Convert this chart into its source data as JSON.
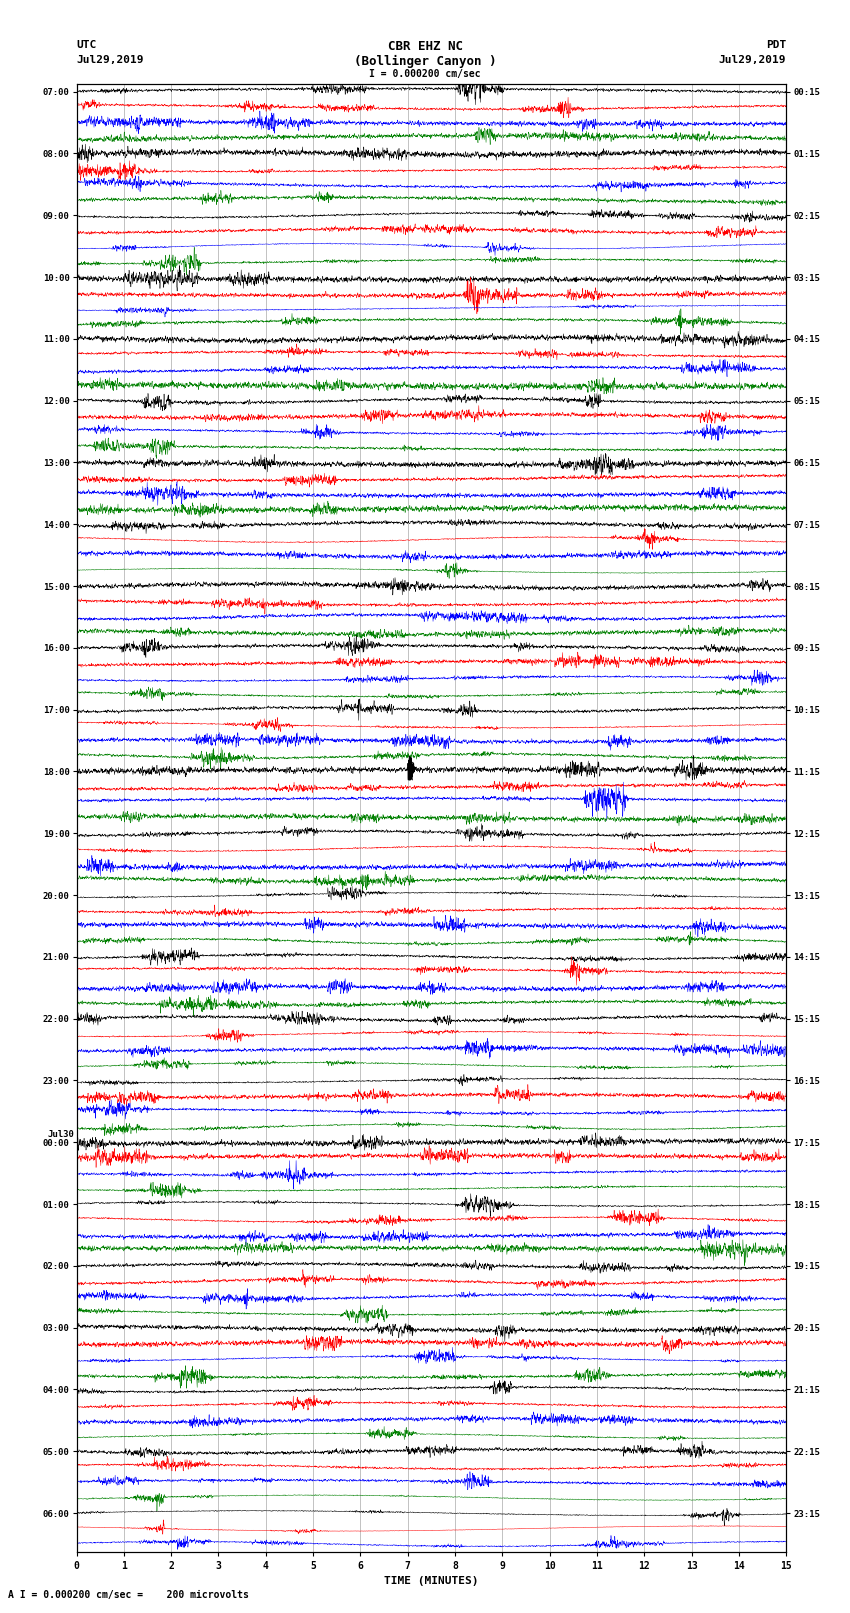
{
  "title_line1": "CBR EHZ NC",
  "title_line2": "(Bollinger Canyon )",
  "scale_text": "I = 0.000200 cm/sec",
  "bottom_text": "A I = 0.000200 cm/sec =    200 microvolts",
  "utc_label": "UTC",
  "utc_date": "Jul29,2019",
  "pdt_label": "PDT",
  "pdt_date": "Jul29,2019",
  "jul30_label": "Jul30",
  "xlabel": "TIME (MINUTES)",
  "xmin": 0,
  "xmax": 15,
  "xticks": [
    0,
    1,
    2,
    3,
    4,
    5,
    6,
    7,
    8,
    9,
    10,
    11,
    12,
    13,
    14,
    15
  ],
  "background_color": "#ffffff",
  "trace_colors": [
    "black",
    "red",
    "blue",
    "green"
  ],
  "fig_width": 8.5,
  "fig_height": 16.13,
  "left_times_utc": [
    "07:00",
    "",
    "",
    "",
    "08:00",
    "",
    "",
    "",
    "09:00",
    "",
    "",
    "",
    "10:00",
    "",
    "",
    "",
    "11:00",
    "",
    "",
    "",
    "12:00",
    "",
    "",
    "",
    "13:00",
    "",
    "",
    "",
    "14:00",
    "",
    "",
    "",
    "15:00",
    "",
    "",
    "",
    "16:00",
    "",
    "",
    "",
    "17:00",
    "",
    "",
    "",
    "18:00",
    "",
    "",
    "",
    "19:00",
    "",
    "",
    "",
    "20:00",
    "",
    "",
    "",
    "21:00",
    "",
    "",
    "",
    "22:00",
    "",
    "",
    "",
    "23:00",
    "",
    "",
    "",
    "00:00",
    "",
    "",
    "",
    "01:00",
    "",
    "",
    "",
    "02:00",
    "",
    "",
    "",
    "03:00",
    "",
    "",
    "",
    "04:00",
    "",
    "",
    "",
    "05:00",
    "",
    "",
    "",
    "06:00",
    "",
    ""
  ],
  "right_times_pdt": [
    "00:15",
    "",
    "",
    "",
    "01:15",
    "",
    "",
    "",
    "02:15",
    "",
    "",
    "",
    "03:15",
    "",
    "",
    "",
    "04:15",
    "",
    "",
    "",
    "05:15",
    "",
    "",
    "",
    "06:15",
    "",
    "",
    "",
    "07:15",
    "",
    "",
    "",
    "08:15",
    "",
    "",
    "",
    "09:15",
    "",
    "",
    "",
    "10:15",
    "",
    "",
    "",
    "11:15",
    "",
    "",
    "",
    "12:15",
    "",
    "",
    "",
    "13:15",
    "",
    "",
    "",
    "14:15",
    "",
    "",
    "",
    "15:15",
    "",
    "",
    "",
    "16:15",
    "",
    "",
    "",
    "17:15",
    "",
    "",
    "",
    "18:15",
    "",
    "",
    "",
    "19:15",
    "",
    "",
    "",
    "20:15",
    "",
    "",
    "",
    "21:15",
    "",
    "",
    "",
    "22:15",
    "",
    "",
    "",
    "23:15",
    "",
    ""
  ]
}
